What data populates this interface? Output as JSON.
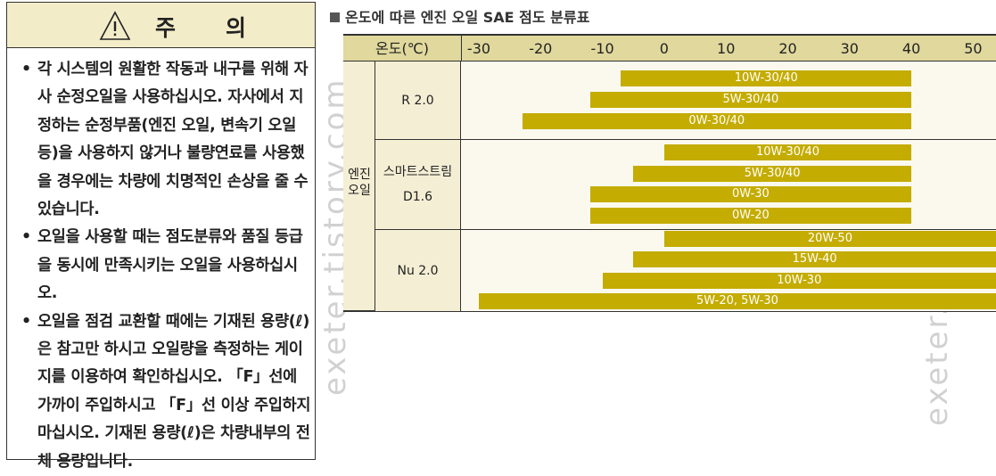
{
  "caution": {
    "title": "주",
    "title2": "의",
    "items": [
      "각 시스템의 원활한 작동과 내구를 위해 자사 순정오일을 사용하십시오. 자사에서 지정하는 순정부품(엔진 오일, 변속기 오일 등)을 사용하지 않거나 불량연료를 사용했을 경우에는 차량에 치명적인 손상을 줄 수 있습니다.",
      "오일을 사용할 때는 점도분류와 품질 등급을 동시에 만족시키는 오일을 사용하십시오.",
      "오일을 점검 교환할 때에는 기재된 용량(ℓ)은 참고만 하시고 오일량을 측정하는 게이지를 이용하여 확인하십시오. 「F」선에 가까이 주입하시고 「F」선 이상 주입하지 마십시오. 기재된 용량(ℓ)은 차량내부의 전체 용량입니다."
    ]
  },
  "watermark": "exeter.tistory.com",
  "chart_data": {
    "type": "table",
    "title": "온도에 따른 엔진 오일 SAE 점도 분류표",
    "header_label": "온도(℃)",
    "category_label": "엔진 오일",
    "ticks": [
      -30,
      -20,
      -10,
      0,
      10,
      20,
      30,
      40,
      50
    ],
    "axis_range": [
      -30,
      50
    ],
    "bar_color": "#c4ac00",
    "groups": [
      {
        "name_lines": [
          "R 2.0"
        ],
        "bars": [
          {
            "label": "10W-30/40",
            "from": -7,
            "to": 40
          },
          {
            "label": "5W-30/40",
            "from": -12,
            "to": 40
          },
          {
            "label": "0W-30/40",
            "from": -23,
            "to": 40
          }
        ]
      },
      {
        "name_lines": [
          "스마트스트림",
          "D1.6"
        ],
        "bars": [
          {
            "label": "10W-30/40",
            "from": 0,
            "to": 40
          },
          {
            "label": "5W-30/40",
            "from": -5,
            "to": 40
          },
          {
            "label": "0W-30",
            "from": -12,
            "to": 40
          },
          {
            "label": "0W-20",
            "from": -12,
            "to": 40
          }
        ]
      },
      {
        "name_lines": [
          "Nu 2.0"
        ],
        "bars": [
          {
            "label": "20W-50",
            "from": 0,
            "to": 55
          },
          {
            "label": "15W-40",
            "from": -5,
            "to": 55
          },
          {
            "label": "10W-30",
            "from": -10,
            "to": 55
          },
          {
            "label": "5W-20, 5W-30",
            "from": -30,
            "to": 55
          }
        ]
      }
    ]
  }
}
